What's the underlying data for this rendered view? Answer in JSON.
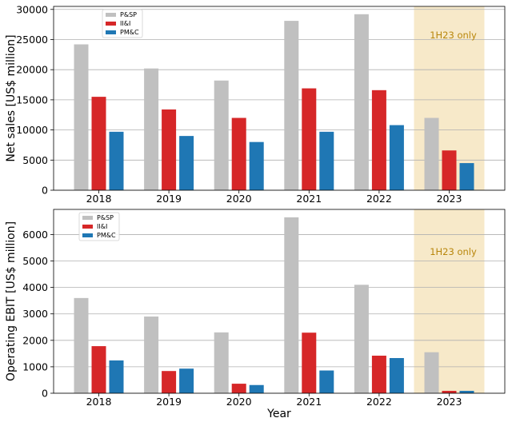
{
  "chart_data": [
    {
      "type": "bar",
      "categories": [
        "2018",
        "2019",
        "2020",
        "2021",
        "2022",
        "2023"
      ],
      "series": [
        {
          "name": "P&SP",
          "color": "#c0c0c0",
          "values": [
            24200,
            20200,
            18200,
            28100,
            29200,
            12000
          ]
        },
        {
          "name": "II&I",
          "color": "#d62728",
          "values": [
            15500,
            13400,
            12000,
            16900,
            16600,
            6600
          ]
        },
        {
          "name": "PM&C",
          "color": "#1f77b4",
          "values": [
            9700,
            9000,
            8000,
            9700,
            10800,
            4500
          ]
        }
      ],
      "xlabel": "",
      "ylabel": "Net sales [US$ million]",
      "ylim": [
        0,
        30500
      ],
      "yticks": [
        0,
        5000,
        10000,
        15000,
        20000,
        25000,
        30000
      ],
      "grid": "horizontal",
      "legend": "top-left",
      "highlight": {
        "category": "2023",
        "label": "1H23 only",
        "color": "#f7e9c9",
        "text_color": "#b8860b"
      }
    },
    {
      "type": "bar",
      "categories": [
        "2018",
        "2019",
        "2020",
        "2021",
        "2022",
        "2023"
      ],
      "series": [
        {
          "name": "P&SP",
          "color": "#c0c0c0",
          "values": [
            3600,
            2900,
            2300,
            6650,
            4100,
            1550
          ]
        },
        {
          "name": "II&I",
          "color": "#d62728",
          "values": [
            1780,
            840,
            360,
            2290,
            1420,
            90
          ]
        },
        {
          "name": "PM&C",
          "color": "#1f77b4",
          "values": [
            1240,
            930,
            310,
            860,
            1330,
            90
          ]
        }
      ],
      "xlabel": "Year",
      "ylabel": "Operating EBIT [US$ million]",
      "ylim": [
        0,
        6950
      ],
      "yticks": [
        0,
        1000,
        2000,
        3000,
        4000,
        5000,
        6000
      ],
      "grid": "horizontal",
      "legend": "top-left",
      "highlight": {
        "category": "2023",
        "label": "1H23 only",
        "color": "#f7e9c9",
        "text_color": "#b8860b"
      }
    }
  ]
}
